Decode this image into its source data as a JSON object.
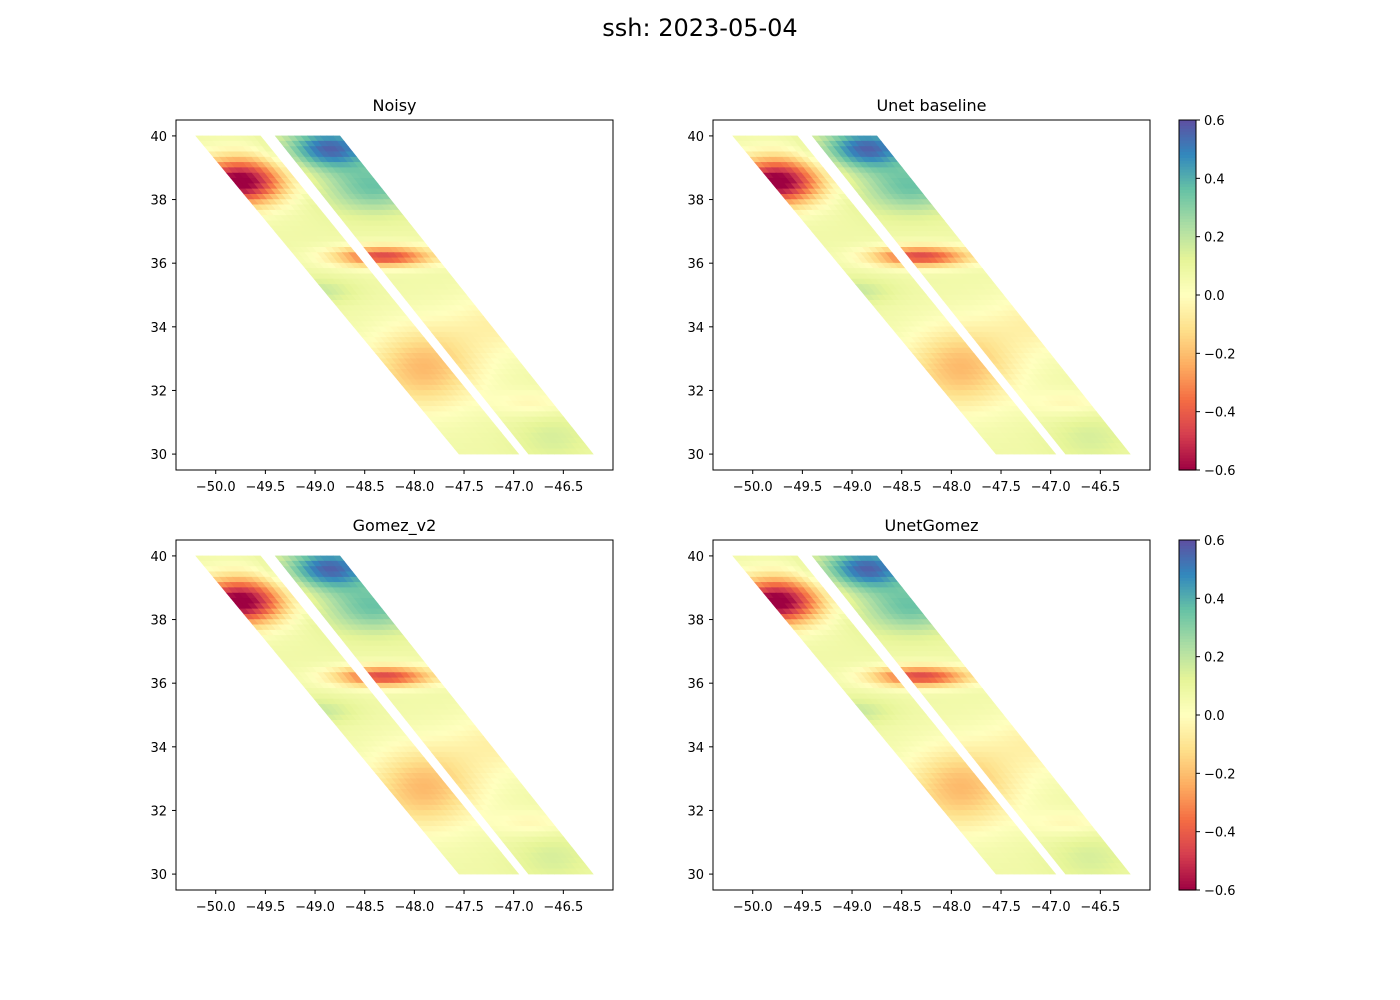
{
  "figure": {
    "suptitle": "ssh: 2023-05-04"
  },
  "chart_data": {
    "type": "heatmap",
    "colormap": "Spectral",
    "variable": "ssh",
    "date": "2023-05-04",
    "xlim": [
      -50.4,
      -46.0
    ],
    "ylim": [
      29.5,
      40.5
    ],
    "xticks": [
      -50.0,
      -49.5,
      -49.0,
      -48.5,
      -48.0,
      -47.5,
      -47.0,
      -46.5
    ],
    "yticks": [
      30,
      32,
      34,
      36,
      38,
      40
    ],
    "xtick_labels": [
      "−50.0",
      "−49.5",
      "−49.0",
      "−48.5",
      "−48.0",
      "−47.5",
      "−47.0",
      "−46.5"
    ],
    "ytick_labels": [
      "30",
      "32",
      "34",
      "36",
      "38",
      "40"
    ],
    "colorbar": {
      "vmin": -0.6,
      "vmax": 0.6,
      "ticks": [
        -0.6,
        -0.4,
        -0.2,
        0.0,
        0.2,
        0.4,
        0.6
      ],
      "tick_labels": [
        "−0.6",
        "−0.4",
        "−0.2",
        "0.0",
        "0.2",
        "0.4",
        "0.6"
      ]
    },
    "swaths": [
      {
        "lat_top": 40,
        "lat_bottom": 30,
        "lon_top_left": -50.2,
        "lon_top_right": -49.55,
        "lon_bottom_left": -47.55,
        "lon_bottom_right": -46.95
      },
      {
        "lat_top": 40,
        "lat_bottom": 30,
        "lon_top_left": -49.4,
        "lon_top_right": -48.75,
        "lon_bottom_left": -46.85,
        "lon_bottom_right": -46.2
      }
    ],
    "features": [
      {
        "name": "negative anomaly",
        "lon": -49.7,
        "lat": 38.5,
        "value": -0.6
      },
      {
        "name": "negative anomaly",
        "lon": -48.3,
        "lat": 36.2,
        "value": -0.45
      },
      {
        "name": "positive anomaly",
        "lon": -48.8,
        "lat": 39.6,
        "value": 0.45
      },
      {
        "name": "negative band",
        "lon": -47.6,
        "lat": 32.5,
        "value": -0.2
      }
    ],
    "panels": [
      {
        "title": "Noisy",
        "colorbar": false
      },
      {
        "title": "Unet baseline",
        "colorbar": true
      },
      {
        "title": "Gomez_v2",
        "colorbar": false
      },
      {
        "title": "UnetGomez",
        "colorbar": true
      }
    ]
  }
}
